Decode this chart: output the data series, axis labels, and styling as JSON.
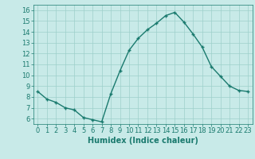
{
  "x": [
    0,
    1,
    2,
    3,
    4,
    5,
    6,
    7,
    8,
    9,
    10,
    11,
    12,
    13,
    14,
    15,
    16,
    17,
    18,
    19,
    20,
    21,
    22,
    23
  ],
  "y": [
    8.5,
    7.8,
    7.5,
    7.0,
    6.8,
    6.1,
    5.9,
    5.7,
    8.3,
    10.4,
    12.3,
    13.4,
    14.2,
    14.8,
    15.5,
    15.8,
    14.9,
    13.8,
    12.6,
    10.8,
    9.9,
    9.0,
    8.6,
    8.5
  ],
  "line_color": "#1a7a6e",
  "marker": "+",
  "marker_color": "#1a7a6e",
  "bg_color": "#c8eae8",
  "grid_color": "#9ecfcb",
  "xlabel": "Humidex (Indice chaleur)",
  "xlim": [
    -0.5,
    23.5
  ],
  "ylim": [
    5.5,
    16.5
  ],
  "yticks": [
    6,
    7,
    8,
    9,
    10,
    11,
    12,
    13,
    14,
    15,
    16
  ],
  "xticks": [
    0,
    1,
    2,
    3,
    4,
    5,
    6,
    7,
    8,
    9,
    10,
    11,
    12,
    13,
    14,
    15,
    16,
    17,
    18,
    19,
    20,
    21,
    22,
    23
  ],
  "xlabel_fontsize": 7,
  "tick_fontsize": 6,
  "linewidth": 1.0,
  "markersize": 3
}
